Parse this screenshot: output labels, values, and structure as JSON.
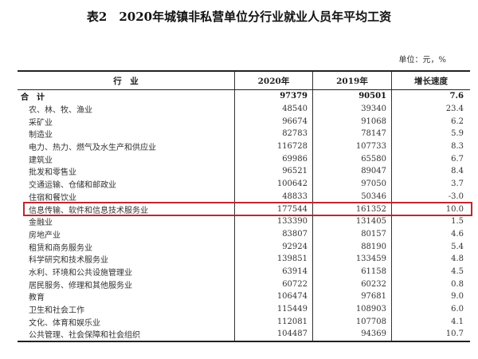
{
  "title": "表2　2020年城镇非私营单位分行业就业人员年平均工资",
  "unit": "单位：元，%",
  "highlight_color": "#c0282d",
  "headers": [
    "行　业",
    "2020年",
    "2019年",
    "增长速度"
  ],
  "rows": [
    {
      "industry": "合　计",
      "y2020": "97379",
      "y2019": "90501",
      "growth": "7.6"
    },
    {
      "industry": "农、林、牧、渔业",
      "y2020": "48540",
      "y2019": "39340",
      "growth": "23.4"
    },
    {
      "industry": "采矿业",
      "y2020": "96674",
      "y2019": "91068",
      "growth": "6.2"
    },
    {
      "industry": "制造业",
      "y2020": "82783",
      "y2019": "78147",
      "growth": "5.9"
    },
    {
      "industry": "电力、热力、燃气及水生产和供应业",
      "y2020": "116728",
      "y2019": "107733",
      "growth": "8.3"
    },
    {
      "industry": "建筑业",
      "y2020": "69986",
      "y2019": "65580",
      "growth": "6.7"
    },
    {
      "industry": "批发和零售业",
      "y2020": "96521",
      "y2019": "89047",
      "growth": "8.4"
    },
    {
      "industry": "交通运输、仓储和邮政业",
      "y2020": "100642",
      "y2019": "97050",
      "growth": "3.7"
    },
    {
      "industry": "住宿和餐饮业",
      "y2020": "48833",
      "y2019": "50346",
      "growth": "-3.0"
    },
    {
      "industry": "信息传输、软件和信息技术服务业",
      "y2020": "177544",
      "y2019": "161352",
      "growth": "10.0"
    },
    {
      "industry": "金融业",
      "y2020": "133390",
      "y2019": "131405",
      "growth": "1.5"
    },
    {
      "industry": "房地产业",
      "y2020": "83807",
      "y2019": "80157",
      "growth": "4.6"
    },
    {
      "industry": "租赁和商务服务业",
      "y2020": "92924",
      "y2019": "88190",
      "growth": "5.4"
    },
    {
      "industry": "科学研究和技术服务业",
      "y2020": "139851",
      "y2019": "133459",
      "growth": "4.8"
    },
    {
      "industry": "水利、环境和公共设施管理业",
      "y2020": "63914",
      "y2019": "61158",
      "growth": "4.5"
    },
    {
      "industry": "居民服务、修理和其他服务业",
      "y2020": "60722",
      "y2019": "60232",
      "growth": "0.8"
    },
    {
      "industry": "教育",
      "y2020": "106474",
      "y2019": "97681",
      "growth": "9.0"
    },
    {
      "industry": "卫生和社会工作",
      "y2020": "115449",
      "y2019": "108903",
      "growth": "6.0"
    },
    {
      "industry": "文化、体育和娱乐业",
      "y2020": "112081",
      "y2019": "107708",
      "growth": "4.1"
    },
    {
      "industry": "公共管理、社会保障和社会组织",
      "y2020": "104487",
      "y2019": "94369",
      "growth": "10.7"
    }
  ]
}
